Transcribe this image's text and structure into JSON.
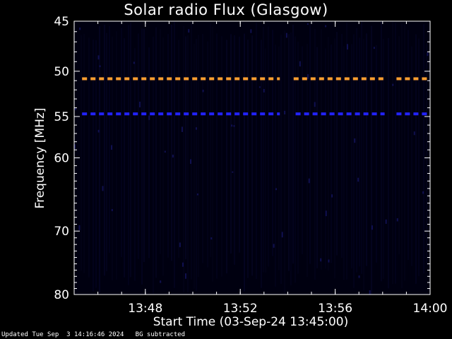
{
  "chart_data": {
    "type": "heatmap",
    "title": "Solar radio Flux (Glasgow)",
    "xlabel": "Start Time (03-Sep-24 13:45:00)",
    "ylabel": "Frequency [MHz]",
    "xlim": [
      "13:45:00",
      "14:00:00"
    ],
    "ylim": [
      45,
      80
    ],
    "y_scale": "log",
    "y_inverted": true,
    "x_ticks": [
      "13:48",
      "13:52",
      "13:56",
      "14:00"
    ],
    "y_ticks": [
      45,
      50,
      55,
      60,
      70,
      80
    ],
    "grid": false,
    "background_color": "#000010",
    "bands": [
      {
        "freq_mhz": 50.8,
        "start": "13:45:20",
        "end": "14:00:00",
        "color": "#ff9f30",
        "gaps": [
          [
            "13:53:40",
            "13:54:15"
          ],
          [
            "13:58:05",
            "13:58:35"
          ]
        ]
      },
      {
        "freq_mhz": 54.7,
        "start": "13:45:20",
        "end": "14:00:00",
        "color": "#2222ff",
        "gaps": [
          [
            "13:53:40",
            "13:54:20"
          ],
          [
            "13:58:05",
            "13:58:35"
          ]
        ]
      }
    ]
  },
  "footer": {
    "updated": "Updated Tue Sep  3 14:16:46 2024",
    "note": "BG subtracted"
  }
}
